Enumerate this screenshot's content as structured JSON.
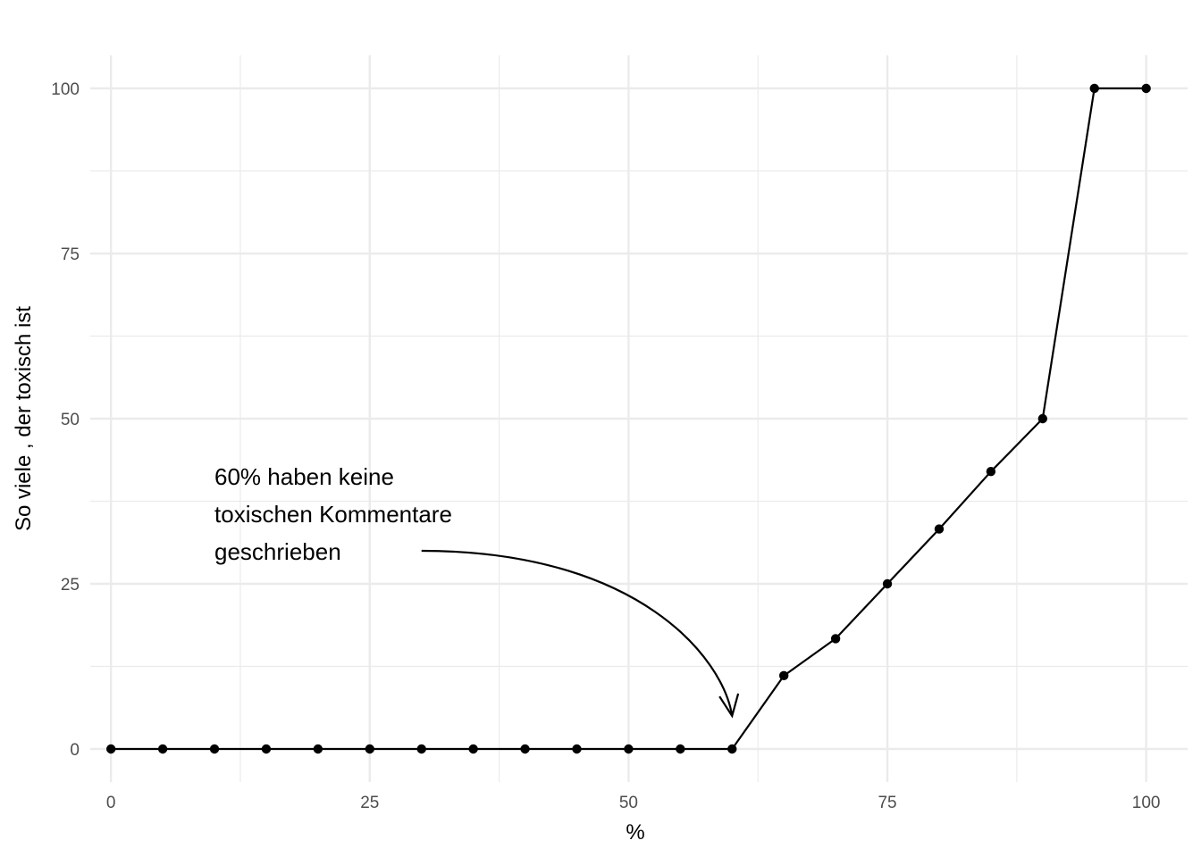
{
  "chart_data": {
    "type": "line",
    "xlabel": "%",
    "ylabel": "So viele , der toxisch ist",
    "xlim": [
      -2,
      104
    ],
    "ylim": [
      -5,
      105
    ],
    "x_ticks": [
      0,
      25,
      50,
      75,
      100
    ],
    "y_ticks": [
      0,
      25,
      50,
      75,
      100
    ],
    "x_minor": [
      12.5,
      37.5,
      62.5,
      87.5
    ],
    "y_minor": [
      12.5,
      37.5,
      62.5,
      87.5
    ],
    "grid": true,
    "series": [
      {
        "x": [
          0,
          5,
          10,
          15,
          20,
          25,
          30,
          35,
          40,
          45,
          50,
          55,
          60,
          65,
          70,
          75,
          80,
          85,
          90,
          95,
          100
        ],
        "y": [
          0,
          0,
          0,
          0,
          0,
          0,
          0,
          0,
          0,
          0,
          0,
          0,
          0,
          11.1,
          16.7,
          25,
          33.3,
          42,
          50,
          100,
          100
        ]
      }
    ],
    "annotation": {
      "lines": [
        "60% haben keine",
        "toxischen Kommentare",
        "geschrieben"
      ],
      "text_x": 10,
      "text_y": 40,
      "arrow_from": [
        30,
        30
      ],
      "arrow_to": [
        60,
        5
      ]
    },
    "colors": {
      "line": "#000000",
      "grid": "#ebebeb",
      "text": "#4d4d4d"
    }
  }
}
